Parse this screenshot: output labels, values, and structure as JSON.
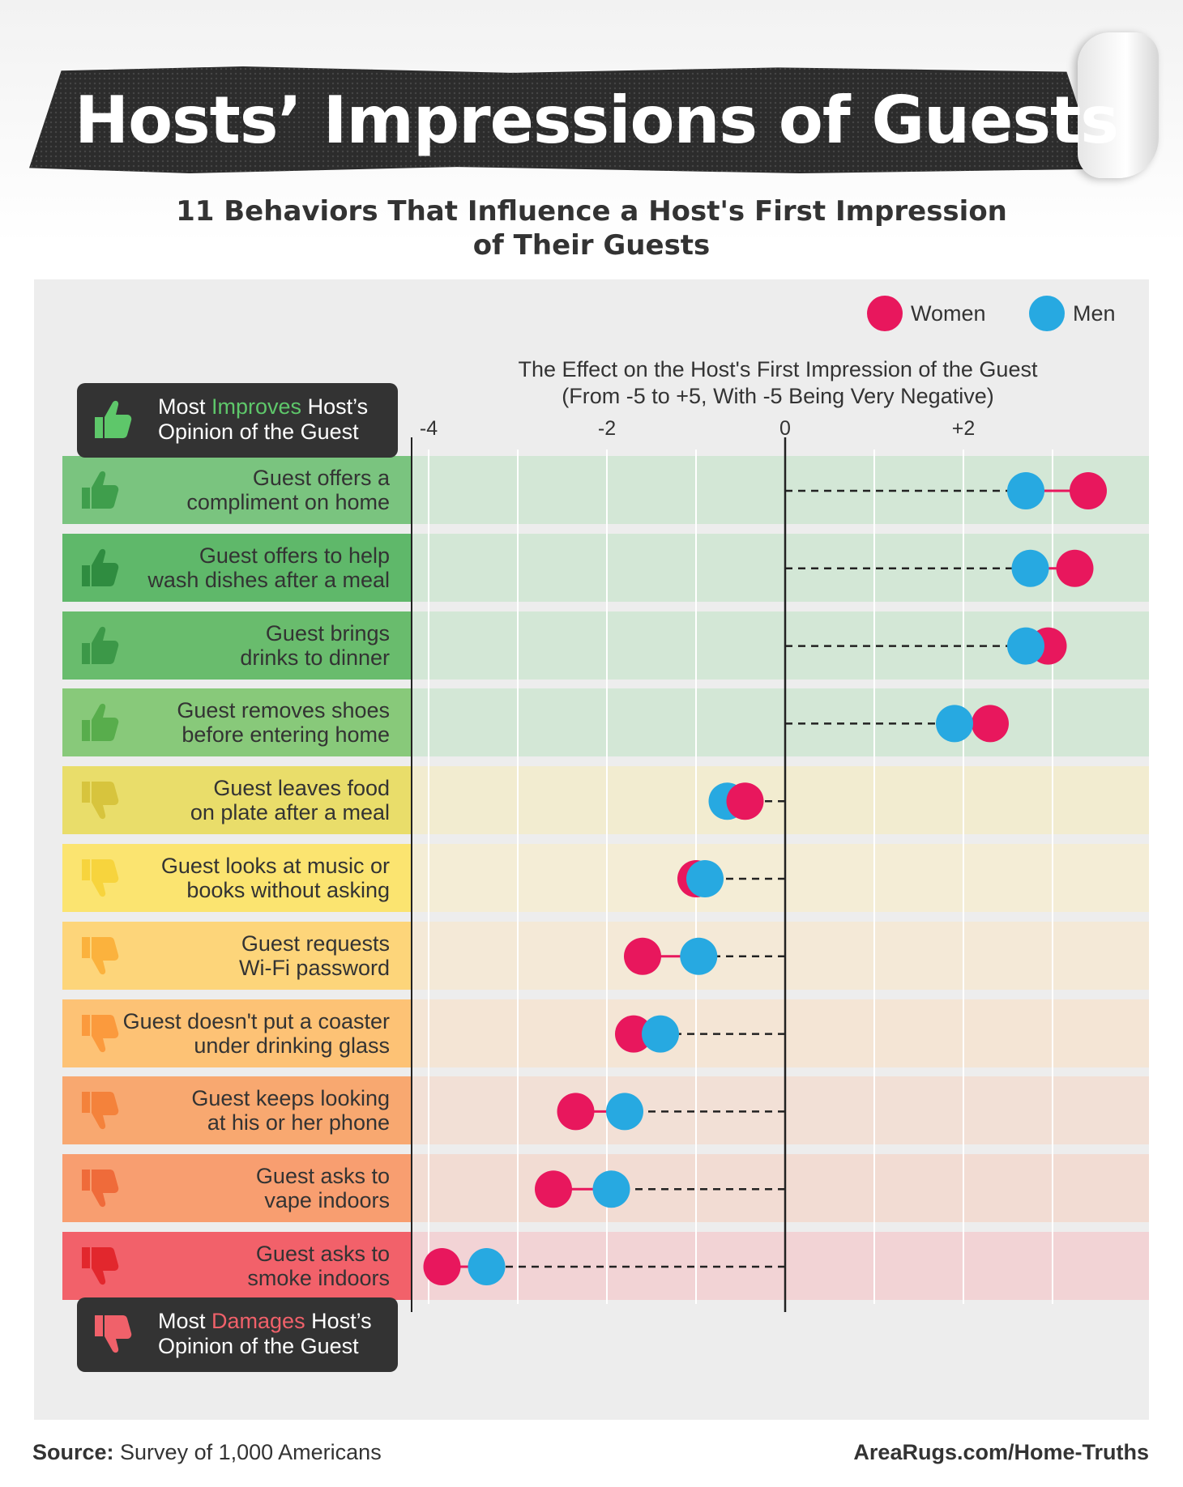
{
  "header": {
    "title": "Hosts’ Impressions of Guests",
    "subtitle_line1": "11 Behaviors That Influence a Host's First Impression",
    "subtitle_line2": "of Their Guests"
  },
  "legend": {
    "women_label": "Women",
    "men_label": "Men"
  },
  "top_box": {
    "pre": "Most ",
    "highlight": "Improves",
    "post": " Host’s",
    "line2": "Opinion of the Guest"
  },
  "bottom_box": {
    "pre": "Most ",
    "highlight": "Damages",
    "post": " Host’s",
    "line2": "Opinion of the Guest"
  },
  "footer": {
    "source_label": "Source:",
    "source_text": " Survey of 1,000 Americans",
    "site": "AreaRugs.com/Home-Truths"
  },
  "colors": {
    "women": "#e8175d",
    "men": "#27a9e1",
    "improve_text": "#5ec76a",
    "damage_text": "#f0616a",
    "row_label_colors": [
      "#7ac47f",
      "#5fb86a",
      "#69bc6d",
      "#88c97a",
      "#e9dd6a",
      "#fbe470",
      "#fdd57a",
      "#fdc275",
      "#f8a870",
      "#f89e70",
      "#f2616a"
    ],
    "row_bg_colors": [
      "#d3e7d6",
      "#d3e7d6",
      "#d3e7d6",
      "#d3e7d6",
      "#f2ecd0",
      "#f4edd6",
      "#f4e9d7",
      "#f4e5d5",
      "#f2e0d6",
      "#f2dcd3",
      "#f2d3d5"
    ],
    "thumb_colors": [
      "#3f9e4c",
      "#2f8c40",
      "#3c9848",
      "#58ad4c",
      "#d7c43d",
      "#f7d43d",
      "#fbb23d",
      "#fb9a3d",
      "#f4823b",
      "#ef6b3a",
      "#e2272d"
    ]
  },
  "chart_data": {
    "type": "dumbbell",
    "title": "The Effect on the Host's First Impression of the Guest",
    "subtitle": "(From -5 to +5, With -5 Being Very Negative)",
    "xlim": [
      -4.2,
      4.1
    ],
    "x_ticks": [
      -4,
      -2,
      0,
      2
    ],
    "x_tick_labels": [
      "-4",
      "-2",
      "0",
      "+2"
    ],
    "gridlines": [
      -4,
      -3,
      -2,
      -1,
      0,
      1,
      2,
      3
    ],
    "rows": [
      {
        "label_line1": "Guest offers a",
        "label_line2": "compliment on home",
        "sentiment": "up",
        "women": 3.4,
        "men": 2.7
      },
      {
        "label_line1": "Guest offers to help",
        "label_line2": "wash dishes after a meal",
        "sentiment": "up",
        "women": 3.25,
        "men": 2.75
      },
      {
        "label_line1": "Guest brings",
        "label_line2": "drinks to dinner",
        "sentiment": "up",
        "women": 2.95,
        "men": 2.7
      },
      {
        "label_line1": "Guest removes shoes",
        "label_line2": "before entering home",
        "sentiment": "up",
        "women": 2.3,
        "men": 1.9
      },
      {
        "label_line1": "Guest leaves food",
        "label_line2": "on plate after a meal",
        "sentiment": "down",
        "women": -0.45,
        "men": -0.65
      },
      {
        "label_line1": "Guest looks at music or",
        "label_line2": "books without asking",
        "sentiment": "down",
        "women": -1.0,
        "men": -0.9
      },
      {
        "label_line1": "Guest requests",
        "label_line2": "Wi-Fi password",
        "sentiment": "down",
        "women": -1.6,
        "men": -0.97
      },
      {
        "label_line1": "Guest doesn't put a coaster",
        "label_line2": "under drinking glass",
        "sentiment": "down",
        "women": -1.7,
        "men": -1.4
      },
      {
        "label_line1": "Guest keeps looking",
        "label_line2": "at his or her phone",
        "sentiment": "down",
        "women": -2.35,
        "men": -1.8
      },
      {
        "label_line1": "Guest asks to",
        "label_line2": "vape indoors",
        "sentiment": "down",
        "women": -2.6,
        "men": -1.95
      },
      {
        "label_line1": "Guest asks to",
        "label_line2": "smoke indoors",
        "sentiment": "down",
        "women": -3.85,
        "men": -3.35
      }
    ]
  }
}
